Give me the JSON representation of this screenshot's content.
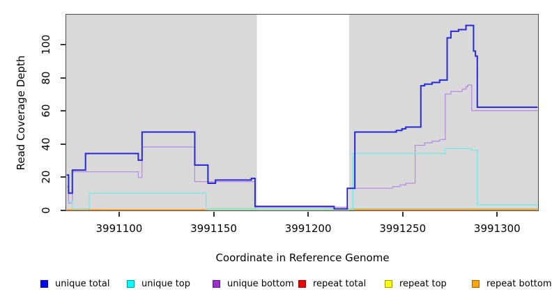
{
  "figure": {
    "y_axis_title": "Read Coverage Depth",
    "x_axis_title": "Coordinate in Reference Genome",
    "plot_background": "#d9d9d9",
    "gap_band_color": "#ffffff"
  },
  "legend": {
    "items": [
      {
        "label": "unique total",
        "fill": "#0000f0",
        "border": "#00009a"
      },
      {
        "label": "unique top",
        "fill": "#00ffff",
        "border": "#009a9a"
      },
      {
        "label": "unique bottom",
        "fill": "#9932cc",
        "border": "#5e1a80"
      },
      {
        "label": "repeat total",
        "fill": "#ee0000",
        "border": "#8f0000"
      },
      {
        "label": "repeat top",
        "fill": "#ffff00",
        "border": "#9a9a00"
      },
      {
        "label": "repeat bottom",
        "fill": "#ffa500",
        "border": "#9a6400"
      }
    ]
  },
  "chart_data": {
    "type": "line",
    "subtype": "step-coverage",
    "title": "",
    "xlabel": "Coordinate in Reference Genome",
    "ylabel": "Read Coverage Depth",
    "xlim": [
      3991072,
      3991322
    ],
    "ylim": [
      0,
      117
    ],
    "x_ticks": [
      3991100,
      3991150,
      3991200,
      3991250,
      3991300
    ],
    "y_ticks": [
      0,
      20,
      40,
      60,
      80,
      100
    ],
    "grid": false,
    "legend_position": "bottom",
    "plot_bg": "#d9d9d9",
    "gap_region": {
      "from": 3991173,
      "to": 3991222,
      "color": "#ffffff"
    },
    "series": [
      {
        "name": "repeat total",
        "color": "#dd2222",
        "width": 1.2,
        "segments": [
          [
            [
              3991072,
              0
            ],
            [
              3991322,
              0
            ]
          ]
        ]
      },
      {
        "name": "repeat top",
        "color": "#e8e864",
        "width": 1.2,
        "segments": [
          [
            [
              3991072,
              0
            ],
            [
              3991322,
              0
            ]
          ]
        ]
      },
      {
        "name": "baseline",
        "color": "#a4d3a1",
        "width": 1.4,
        "segments": [
          [
            [
              3991147,
              0.6
            ],
            [
              3991322,
              0.6
            ]
          ]
        ]
      },
      {
        "name": "repeat bottom",
        "color": "#ff9d21",
        "width": 1.7,
        "segments": [
          [
            [
              3991072,
              0
            ],
            [
              3991147,
              0
            ]
          ],
          [
            [
              3991222,
              0
            ],
            [
              3991322,
              0
            ]
          ]
        ]
      },
      {
        "name": "unique bottom",
        "color": "#b78ce2",
        "width": 1.3,
        "segments": [
          [
            [
              3991072,
              14
            ],
            [
              3991073,
              4
            ],
            [
              3991075,
              23
            ],
            [
              3991110,
              19.5
            ],
            [
              3991112,
              38
            ],
            [
              3991140,
              17
            ],
            [
              3991172,
              1.5
            ],
            [
              3991221,
              13
            ],
            [
              3991245,
              14
            ],
            [
              3991249,
              15
            ],
            [
              3991252,
              16
            ],
            [
              3991257,
              39
            ],
            [
              3991262,
              40.5
            ],
            [
              3991266,
              41.5
            ],
            [
              3991270,
              42.5
            ],
            [
              3991273,
              70
            ],
            [
              3991276,
              71.5
            ],
            [
              3991282,
              73
            ],
            [
              3991284,
              74.5
            ],
            [
              3991285,
              75.5
            ],
            [
              3991287,
              60
            ],
            [
              3991322,
              60
            ]
          ]
        ]
      },
      {
        "name": "unique top",
        "color": "#74e9ea",
        "width": 1.3,
        "segments": [
          [
            [
              3991072,
              5
            ],
            [
              3991075,
              0.5
            ],
            [
              3991084,
              10
            ],
            [
              3991146,
              0.3
            ],
            [
              3991224,
              34
            ],
            [
              3991273,
              37
            ],
            [
              3991287,
              36
            ],
            [
              3991290,
              3
            ],
            [
              3991322,
              3
            ]
          ]
        ]
      },
      {
        "name": "unique total",
        "color": "#2727de",
        "width": 2,
        "segments": [
          [
            [
              3991072,
              21
            ],
            [
              3991073,
              10
            ],
            [
              3991075,
              24
            ],
            [
              3991082,
              34
            ],
            [
              3991110,
              30
            ],
            [
              3991112,
              47
            ],
            [
              3991140,
              27
            ],
            [
              3991147,
              16
            ],
            [
              3991151,
              18
            ],
            [
              3991170,
              19
            ],
            [
              3991172,
              2
            ],
            [
              3991214,
              0.5
            ],
            [
              3991221,
              13
            ],
            [
              3991225,
              47
            ],
            [
              3991247,
              48
            ],
            [
              3991250,
              49
            ],
            [
              3991252,
              50
            ],
            [
              3991260,
              75
            ],
            [
              3991262,
              76
            ],
            [
              3991266,
              77
            ],
            [
              3991270,
              78.5
            ],
            [
              3991274,
              104
            ],
            [
              3991276,
              108
            ],
            [
              3991280,
              109
            ],
            [
              3991284,
              111.5
            ],
            [
              3991288,
              96
            ],
            [
              3991289,
              93
            ],
            [
              3991290,
              62
            ],
            [
              3991322,
              62
            ]
          ]
        ]
      }
    ]
  }
}
